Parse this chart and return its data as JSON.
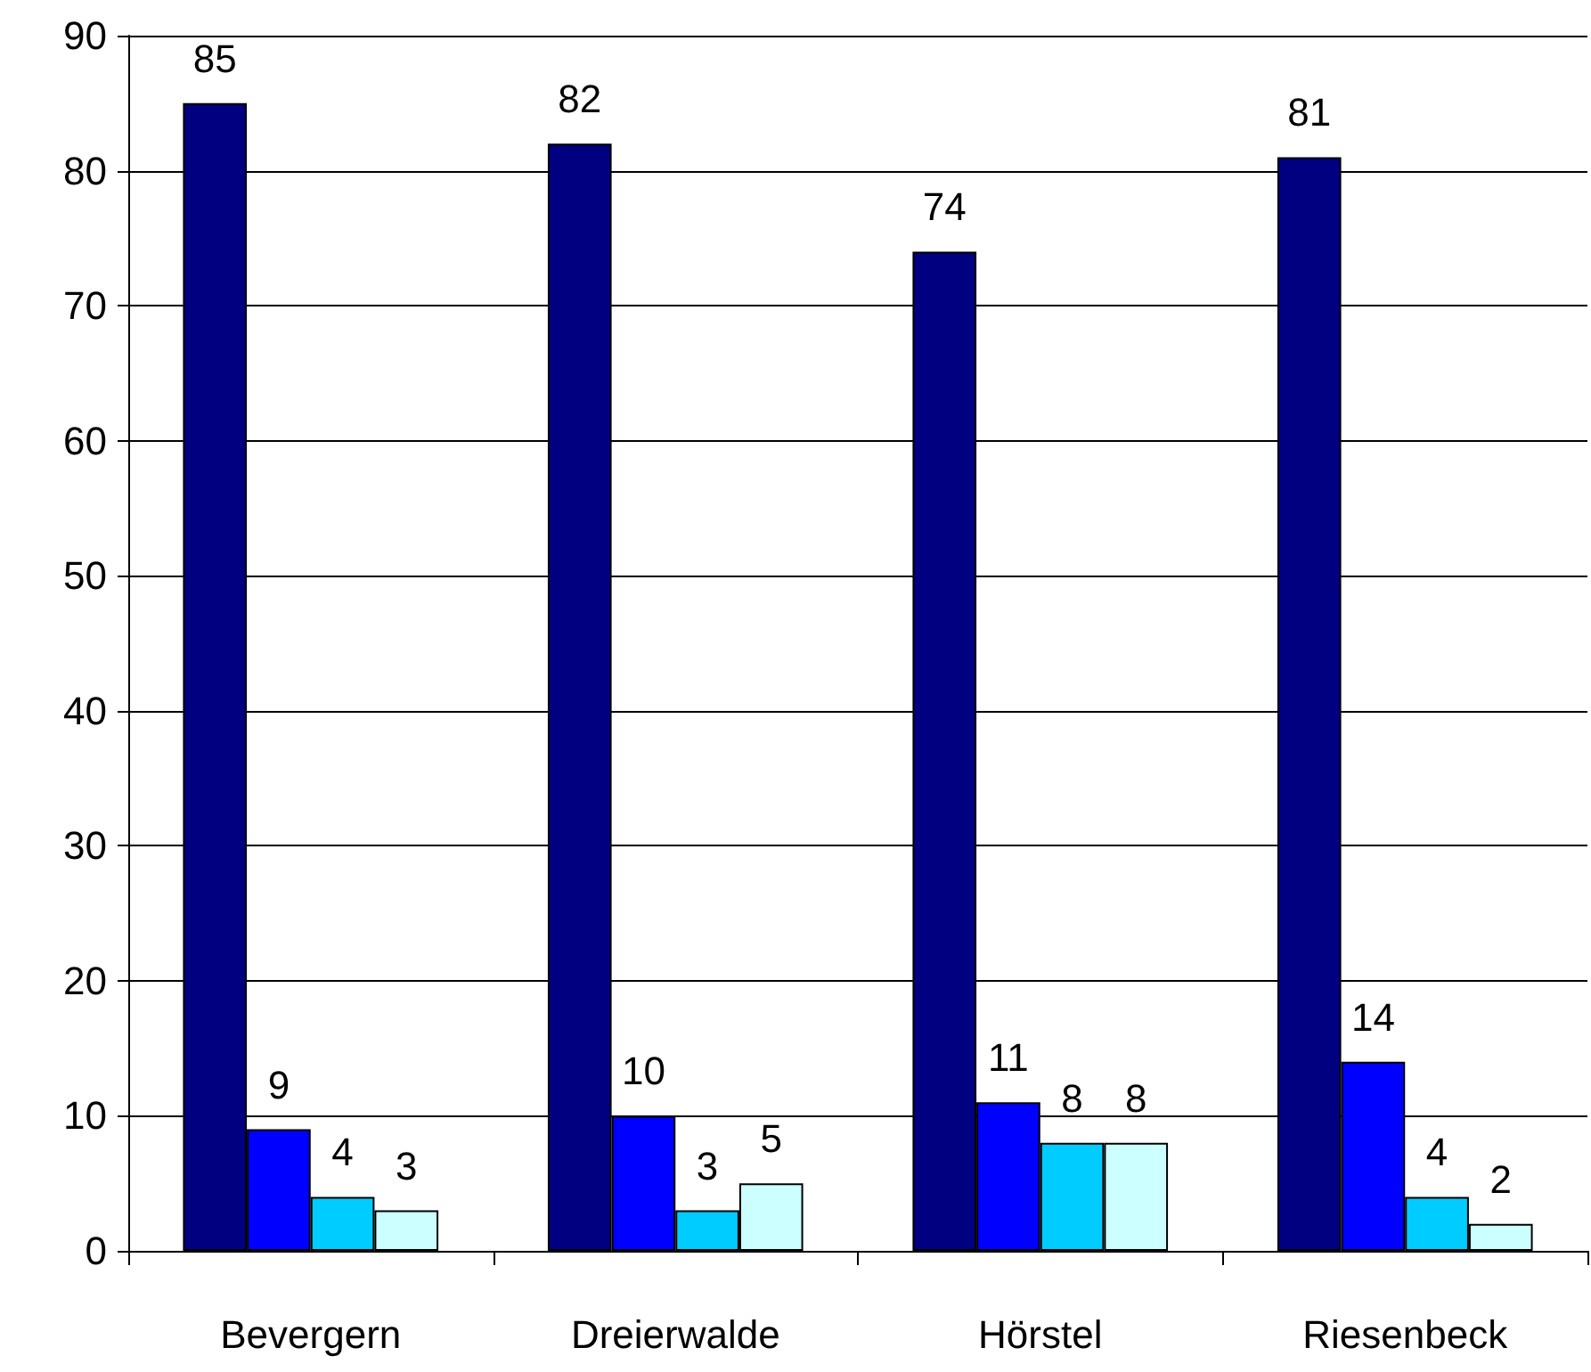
{
  "chart_data": {
    "type": "bar",
    "categories": [
      "Bevergern",
      "Dreierwalde",
      "Hörstel",
      "Riesenbeck"
    ],
    "series": [
      {
        "color": "#000080",
        "values": [
          85,
          82,
          74,
          81
        ]
      },
      {
        "color": "#0000ff",
        "values": [
          9,
          10,
          11,
          14
        ]
      },
      {
        "color": "#00ccff",
        "values": [
          4,
          3,
          8,
          4
        ]
      },
      {
        "color": "#ccffff",
        "values": [
          3,
          5,
          8,
          2
        ]
      }
    ],
    "ylim": [
      0,
      90
    ],
    "yticks": [
      0,
      10,
      20,
      30,
      40,
      50,
      60,
      70,
      80,
      90
    ],
    "grid": "y",
    "data_labels": true
  }
}
